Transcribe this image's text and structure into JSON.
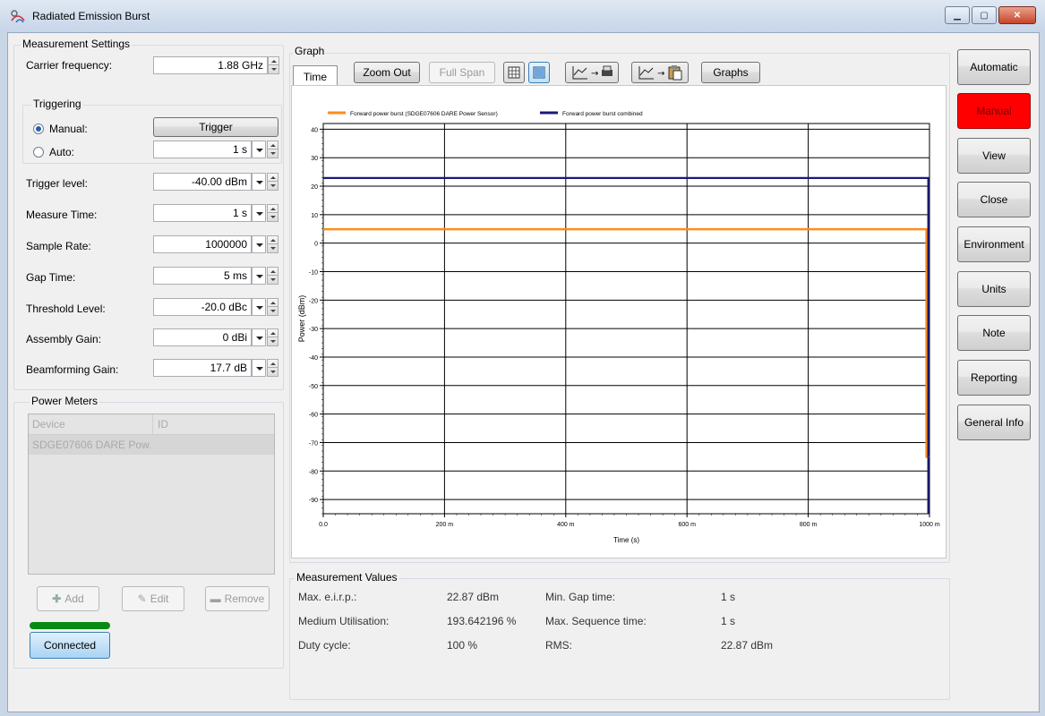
{
  "window": {
    "title": "Radiated Emission Burst"
  },
  "settings": {
    "group_title": "Measurement Settings",
    "carrier_frequency": {
      "label": "Carrier frequency:",
      "value": "1.88 GHz"
    },
    "triggering": {
      "group_title": "Triggering",
      "manual_label": "Manual:",
      "auto_label": "Auto:",
      "trigger_button": "Trigger",
      "auto_value": "1 s",
      "selected": "manual"
    },
    "rows": [
      {
        "label": "Trigger level:",
        "value": "-40.00 dBm"
      },
      {
        "label": "Measure Time:",
        "value": "1 s"
      },
      {
        "label": "Sample Rate:",
        "value": "1000000"
      },
      {
        "label": "Gap Time:",
        "value": "5 ms"
      },
      {
        "label": "Threshold Level:",
        "value": "-20.0 dBc"
      },
      {
        "label": "Assembly Gain:",
        "value": "0 dBi"
      },
      {
        "label": "Beamforming Gain:",
        "value": "17.7 dB"
      }
    ]
  },
  "power_meters": {
    "group_title": "Power Meters",
    "columns": [
      "Device",
      "ID"
    ],
    "rows": [
      {
        "device": "SDGE07606 DARE Pow...",
        "id": ""
      }
    ],
    "add_label": "Add",
    "edit_label": "Edit",
    "remove_label": "Remove",
    "connected_label": "Connected"
  },
  "graph": {
    "group_title": "Graph",
    "tab_label": "Time",
    "toolbar": {
      "zoom_out": "Zoom Out",
      "full_span": "Full Span",
      "graphs": "Graphs"
    }
  },
  "chart_data": {
    "type": "line",
    "title": "",
    "xlabel": "Time (s)",
    "ylabel": "Power (dBm)",
    "xlim": [
      0,
      1
    ],
    "ylim": [
      -95,
      42
    ],
    "x_ticks": [
      0,
      0.2,
      0.4,
      0.6,
      0.8,
      1.0
    ],
    "x_tick_labels": [
      "0.0",
      "200 m",
      "400 m",
      "600 m",
      "800 m",
      "1000 m"
    ],
    "y_ticks": [
      40,
      30,
      20,
      10,
      0,
      -10,
      -20,
      -30,
      -40,
      -50,
      -60,
      -70,
      -80,
      -90
    ],
    "y_tick_labels": [
      "40",
      "30",
      "20",
      "10",
      "0",
      "-10",
      "-20",
      "-30",
      "-40",
      "-50",
      "-60",
      "-70",
      "-80",
      "-90"
    ],
    "grid": true,
    "legend_position": "top",
    "series": [
      {
        "name": "Forward power burst (SDGE07606 DARE Power Sensor)",
        "color": "#ff8c1a",
        "x": [
          0,
          0.995,
          0.995,
          0.995,
          1.0
        ],
        "y": [
          4.9,
          4.9,
          -35,
          -75,
          -75
        ]
      },
      {
        "name": "Forward power burst combined",
        "color": "#1a1a7a",
        "x": [
          0,
          0.998,
          0.998
        ],
        "y": [
          22.87,
          22.87,
          -95
        ]
      }
    ]
  },
  "measurement_values": {
    "group_title": "Measurement Values",
    "items": [
      {
        "label": "Max. e.i.r.p.:",
        "value": "22.87 dBm"
      },
      {
        "label": "Min. Gap time:",
        "value": "1 s"
      },
      {
        "label": "Medium Utilisation:",
        "value": "193.642196 %"
      },
      {
        "label": "Max. Sequence time:",
        "value": "1 s"
      },
      {
        "label": "Duty cycle:",
        "value": "100 %"
      },
      {
        "label": "RMS:",
        "value": "22.87 dBm"
      }
    ]
  },
  "side_buttons": [
    {
      "label": "Automatic",
      "active": false
    },
    {
      "label": "Manual",
      "active": true
    },
    {
      "label": "View",
      "active": false
    },
    {
      "label": "Close",
      "active": false
    },
    {
      "label": "Environment",
      "active": false
    },
    {
      "label": "Units",
      "active": false
    },
    {
      "label": "Note",
      "active": false
    },
    {
      "label": "Reporting",
      "active": false
    },
    {
      "label": "General Info",
      "active": false
    }
  ]
}
